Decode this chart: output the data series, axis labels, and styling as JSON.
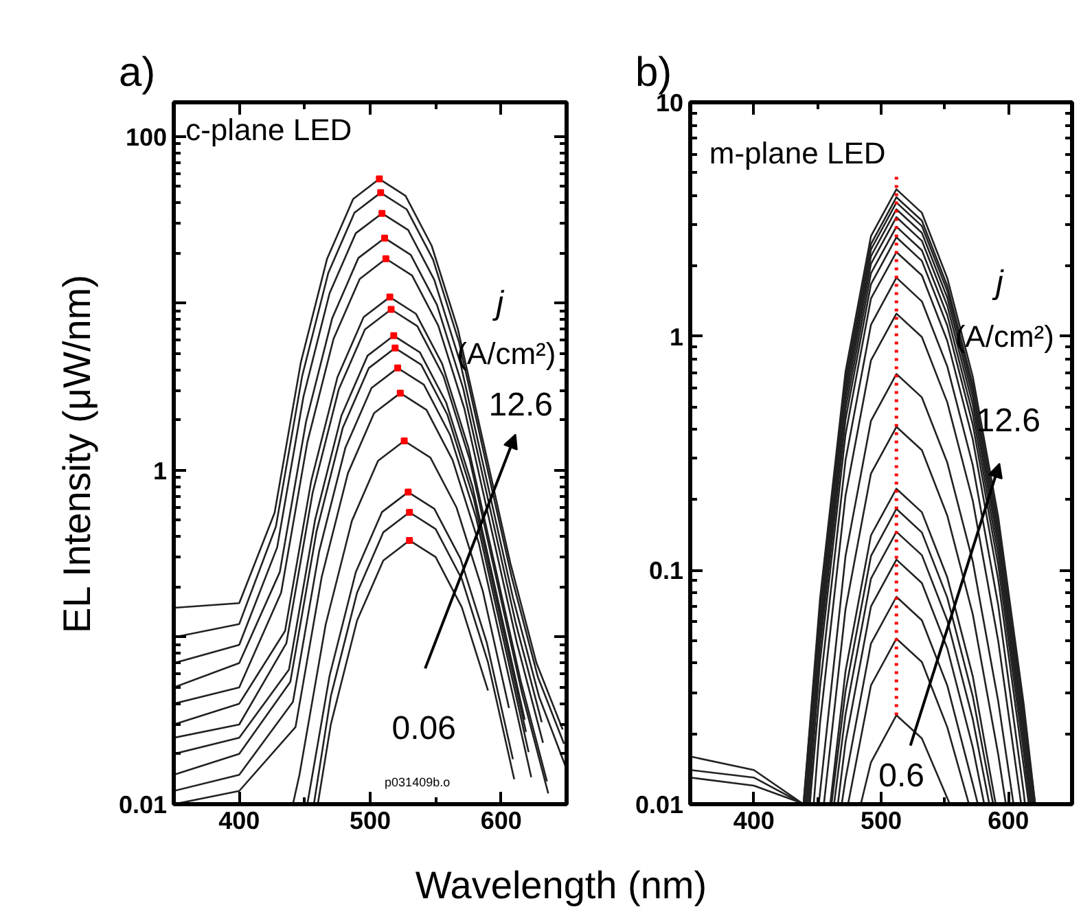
{
  "chart_data": [
    {
      "type": "line",
      "title": "a)",
      "ylabel": "EL Intensity (μW/nm)",
      "xlabel": "Wavelength (nm)",
      "log": "y",
      "grid": false,
      "xlim": [
        350,
        650
      ],
      "xticks": [
        400,
        500,
        600
      ],
      "ylim": [
        0.01,
        160
      ],
      "yticks": [
        0.01,
        {
          "value": 0.1,
          "label": null
        },
        1,
        {
          "value": 10,
          "label": null
        },
        100
      ],
      "annotations": [
        "c-plane LED",
        "j",
        "(A/cm²)",
        "12.6",
        "0.06",
        "p031409b.o"
      ],
      "series": [
        {
          "color": "#222222",
          "x": [
            350,
            400,
            427,
            447,
            467,
            487,
            507,
            527,
            547,
            567,
            587,
            607,
            627,
            647
          ],
          "values": [
            0.15,
            0.16,
            0.556,
            4.41,
            18.4,
            42.2,
            55.6,
            44.1,
            22.1,
            7.0,
            1.4,
            0.279,
            0.07,
            0.028
          ]
        },
        {
          "color": "#222222",
          "x": [
            350,
            400,
            428,
            448,
            468,
            488,
            508,
            528,
            548,
            568,
            588,
            608,
            628,
            648
          ],
          "values": [
            0.1,
            0.12,
            0.46,
            3.65,
            15.2,
            34.9,
            46,
            36.5,
            18.3,
            5.8,
            1.15,
            0.23,
            0.058,
            0.023
          ]
        },
        {
          "color": "#222222",
          "x": [
            350,
            400,
            429,
            449,
            469,
            489,
            509,
            529,
            549,
            569,
            589,
            609,
            629,
            649
          ],
          "values": [
            0.07,
            0.09,
            0.346,
            2.75,
            11.5,
            26.3,
            34.6,
            27.5,
            13.8,
            4.36,
            0.87,
            0.173,
            0.044,
            0.017
          ]
        },
        {
          "color": "#222222",
          "x": [
            350,
            400,
            431,
            451,
            471,
            491,
            511,
            531,
            551,
            571,
            591,
            611,
            631
          ],
          "values": [
            0.05,
            0.07,
            0.246,
            1.95,
            8.14,
            18.7,
            24.6,
            19.5,
            9.79,
            3.1,
            0.617,
            0.123,
            0.031
          ]
        },
        {
          "color": "#222222",
          "x": [
            350,
            400,
            432,
            452,
            472,
            492,
            512,
            532,
            552,
            572,
            592,
            612,
            632
          ],
          "values": [
            0.04,
            0.05,
            0.185,
            1.47,
            6.12,
            14.0,
            18.5,
            14.7,
            7.36,
            2.33,
            0.464,
            0.0927,
            0.0233
          ]
        },
        {
          "color": "#222222",
          "x": [
            350,
            400,
            435,
            455,
            475,
            495,
            515,
            535,
            555,
            575,
            595,
            615,
            635
          ],
          "values": [
            0.03,
            0.04,
            0.109,
            0.865,
            3.61,
            8.27,
            10.9,
            8.65,
            4.34,
            1.37,
            0.274,
            0.0546,
            0.0137
          ]
        },
        {
          "color": "#222222",
          "x": [
            350,
            400,
            436,
            456,
            476,
            496,
            516,
            536,
            556,
            576,
            596,
            616,
            636
          ],
          "values": [
            0.025,
            0.03,
            0.092,
            0.73,
            3.05,
            6.98,
            9.2,
            7.3,
            3.66,
            1.16,
            0.231,
            0.0461,
            0.0116
          ]
        },
        {
          "color": "#222222",
          "x": [
            350,
            400,
            438,
            458,
            478,
            498,
            518,
            538,
            558,
            578,
            598,
            618
          ],
          "values": [
            0.02,
            0.025,
            0.064,
            0.508,
            2.12,
            4.86,
            6.4,
            5.08,
            2.55,
            0.806,
            0.161,
            0.0321
          ]
        },
        {
          "color": "#222222",
          "x": [
            350,
            400,
            439,
            459,
            479,
            499,
            519,
            539,
            559,
            579,
            599,
            619
          ],
          "values": [
            0.015,
            0.02,
            0.054,
            0.429,
            1.79,
            4.1,
            5.4,
            4.29,
            2.15,
            0.68,
            0.136,
            0.0271
          ]
        },
        {
          "color": "#222222",
          "x": [
            350,
            400,
            441,
            461,
            481,
            501,
            521,
            541,
            561,
            581,
            601,
            621
          ],
          "values": [
            0.012,
            0.015,
            0.041,
            0.326,
            1.36,
            3.11,
            4.1,
            3.26,
            1.63,
            0.517,
            0.103,
            0.0205
          ]
        },
        {
          "color": "#222222",
          "x": [
            350,
            400,
            443,
            463,
            483,
            503,
            523,
            543,
            563,
            583,
            603,
            623
          ],
          "values": [
            0.01,
            0.012,
            0.029,
            0.23,
            0.96,
            2.2,
            2.9,
            2.3,
            1.15,
            0.365,
            0.0728,
            0.0145
          ]
        },
        {
          "color": "#222222",
          "x": [
            441,
            446,
            466,
            486,
            506,
            526,
            546,
            566,
            586,
            606
          ],
          "values": [
            0.01,
            0.015,
            0.119,
            0.497,
            1.14,
            1.5,
            1.19,
            0.597,
            0.189,
            0.0377
          ]
        },
        {
          "color": "#222222",
          "x": [
            452,
            469,
            489,
            509,
            529,
            549,
            569,
            589,
            609
          ],
          "values": [
            0.01,
            0.0588,
            0.245,
            0.562,
            0.74,
            0.588,
            0.295,
            0.0932,
            0.0186
          ]
        },
        {
          "color": "#222222",
          "x": [
            457,
            470,
            490,
            510,
            530,
            550,
            570,
            590,
            610
          ],
          "values": [
            0.01,
            0.0445,
            0.185,
            0.425,
            0.56,
            0.445,
            0.223,
            0.0706,
            0.0141
          ]
        },
        {
          "color": "#222222",
          "x": [
            460,
            470,
            490,
            510,
            530,
            550,
            570,
            590
          ],
          "values": [
            0.01,
            0.0302,
            0.126,
            0.288,
            0.38,
            0.302,
            0.151,
            0.0479
          ]
        },
        {
          "color": "#ff0000",
          "type": "scatter",
          "marker": "square",
          "x": [
            507,
            508,
            509,
            511,
            512,
            515,
            516,
            518,
            519,
            521,
            523,
            526,
            529,
            530,
            530
          ],
          "values": [
            55.6,
            46,
            34.6,
            24.6,
            18.5,
            10.9,
            9.2,
            6.4,
            5.4,
            4.1,
            2.9,
            1.5,
            0.74,
            0.56,
            0.38
          ]
        }
      ]
    },
    {
      "type": "line",
      "title": "b)",
      "log": "y",
      "grid": false,
      "xlim": [
        350,
        650
      ],
      "xticks": [
        400,
        500,
        600
      ],
      "ylim": [
        0.01,
        10
      ],
      "yticks": [
        0.01,
        0.1,
        1,
        10
      ],
      "annotations": [
        "m-plane LED",
        "j",
        "(A/cm²)",
        "12.6",
        "0.6"
      ],
      "series": [
        {
          "color": "#222222",
          "x": [
            350,
            400,
            439,
            452,
            472,
            492,
            512,
            532,
            552,
            572,
            592,
            612,
            621
          ],
          "values": [
            0.016,
            0.014,
            0.01,
            0.0757,
            0.706,
            2.68,
            4.25,
            3.37,
            1.77,
            0.672,
            0.169,
            0.0268,
            0.01
          ]
        },
        {
          "color": "#222222",
          "x": [
            350,
            400,
            439,
            452,
            472,
            492,
            512,
            532,
            552,
            572,
            592,
            612,
            621
          ],
          "values": [
            0.014,
            0.013,
            0.01,
            0.07,
            0.652,
            2.48,
            3.93,
            3.12,
            1.64,
            0.621,
            0.156,
            0.0248,
            0.01
          ]
        },
        {
          "color": "#222222",
          "x": [
            350,
            400,
            440,
            452,
            472,
            492,
            512,
            532,
            552,
            572,
            592,
            612,
            620
          ],
          "values": [
            0.013,
            0.012,
            0.01,
            0.0664,
            0.619,
            2.35,
            3.73,
            2.96,
            1.56,
            0.589,
            0.148,
            0.0235,
            0.01
          ]
        },
        {
          "color": "#222222",
          "x": [
            440,
            452,
            472,
            492,
            512,
            532,
            552,
            572,
            592,
            612,
            620
          ],
          "values": [
            0.01,
            0.0621,
            0.579,
            2.2,
            3.49,
            2.77,
            1.46,
            0.551,
            0.139,
            0.022,
            0.01
          ]
        },
        {
          "color": "#222222",
          "x": [
            440,
            452,
            472,
            492,
            512,
            532,
            552,
            572,
            592,
            612,
            619
          ],
          "values": [
            0.01,
            0.0575,
            0.536,
            2.04,
            3.23,
            2.56,
            1.35,
            0.51,
            0.129,
            0.0204,
            0.01
          ]
        },
        {
          "color": "#222222",
          "x": [
            441,
            452,
            472,
            492,
            512,
            532,
            552,
            572,
            592,
            612,
            618
          ],
          "values": [
            0.01,
            0.0523,
            0.488,
            1.86,
            2.94,
            2.33,
            1.23,
            0.465,
            0.117,
            0.0186,
            0.01
          ]
        },
        {
          "color": "#222222",
          "x": [
            442,
            452,
            472,
            492,
            512,
            532,
            552,
            572,
            592,
            612,
            617
          ],
          "values": [
            0.01,
            0.0472,
            0.44,
            1.67,
            2.65,
            2.1,
            1.11,
            0.419,
            0.105,
            0.0167,
            0.01
          ]
        },
        {
          "color": "#222222",
          "x": [
            443,
            452,
            472,
            492,
            512,
            532,
            552,
            572,
            592,
            612,
            616
          ],
          "values": [
            0.01,
            0.0408,
            0.38,
            1.45,
            2.29,
            1.82,
            0.955,
            0.362,
            0.0911,
            0.0145,
            0.01
          ]
        },
        {
          "color": "#222222",
          "x": [
            444,
            452,
            472,
            492,
            512,
            532,
            552,
            572,
            592,
            612,
            613
          ],
          "values": [
            0.01,
            0.0317,
            0.295,
            1.12,
            1.78,
            1.41,
            0.742,
            0.281,
            0.0708,
            0.0112,
            0.01
          ]
        },
        {
          "color": "#222222",
          "x": [
            447,
            452,
            472,
            492,
            512,
            532,
            552,
            572,
            592,
            610
          ],
          "values": [
            0.01,
            0.0223,
            0.208,
            0.789,
            1.25,
            0.993,
            0.521,
            0.198,
            0.0498,
            0.01
          ]
        },
        {
          "color": "#222222",
          "x": [
            451,
            472,
            492,
            512,
            532,
            552,
            572,
            592,
            604
          ],
          "values": [
            0.01,
            0.115,
            0.435,
            0.69,
            0.548,
            0.288,
            0.109,
            0.0275,
            0.01
          ]
        },
        {
          "color": "#222222",
          "x": [
            455,
            472,
            492,
            512,
            532,
            552,
            572,
            592,
            598
          ],
          "values": [
            0.01,
            0.0681,
            0.259,
            0.41,
            0.326,
            0.171,
            0.0648,
            0.0163,
            0.01
          ]
        },
        {
          "color": "#222222",
          "x": [
            460,
            472,
            492,
            512,
            532,
            552,
            572,
            590
          ],
          "values": [
            0.01,
            0.037,
            0.141,
            0.223,
            0.177,
            0.093,
            0.0352,
            0.01
          ]
        },
        {
          "color": "#222222",
          "x": [
            461,
            472,
            492,
            512,
            532,
            552,
            572,
            588
          ],
          "values": [
            0.01,
            0.0304,
            0.115,
            0.183,
            0.145,
            0.0763,
            0.0289,
            0.01
          ]
        },
        {
          "color": "#222222",
          "x": [
            463,
            472,
            492,
            512,
            532,
            552,
            572,
            585
          ],
          "values": [
            0.01,
            0.0242,
            0.0921,
            0.146,
            0.116,
            0.0609,
            0.0231,
            0.01
          ]
        },
        {
          "color": "#222222",
          "x": [
            466,
            472,
            492,
            512,
            532,
            552,
            572,
            581
          ],
          "values": [
            0.01,
            0.0184,
            0.07,
            0.111,
            0.0881,
            0.0463,
            0.0175,
            0.01
          ]
        },
        {
          "color": "#222222",
          "x": [
            469,
            472,
            492,
            512,
            532,
            552,
            572,
            576
          ],
          "values": [
            0.01,
            0.0128,
            0.0486,
            0.077,
            0.0611,
            0.0321,
            0.0122,
            0.01
          ]
        },
        {
          "color": "#222222",
          "x": [
            474,
            492,
            512,
            532,
            552,
            569
          ],
          "values": [
            0.01,
            0.0322,
            0.051,
            0.0405,
            0.0213,
            0.01
          ]
        },
        {
          "color": "#222222",
          "x": [
            484,
            492,
            512,
            532,
            554
          ],
          "values": [
            0.01,
            0.0151,
            0.024,
            0.0191,
            0.01
          ]
        },
        {
          "color": "#ff0000",
          "line_style": "dotted",
          "x": [
            512,
            512
          ],
          "values": [
            0.024,
            4.9
          ]
        }
      ]
    }
  ]
}
